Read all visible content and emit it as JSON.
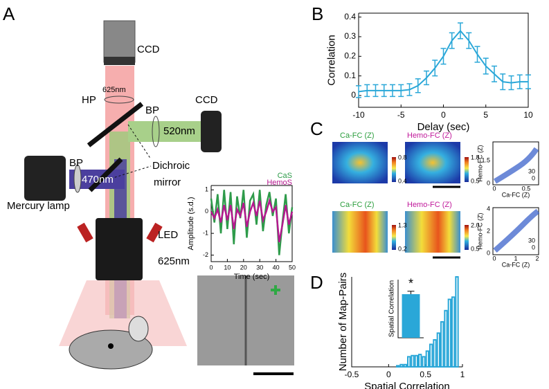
{
  "panels": {
    "a": "A",
    "b": "B",
    "c": "C",
    "d": "D"
  },
  "diagram": {
    "ccd_top": "CCD",
    "nm625_top": "625nm",
    "hp": "HP",
    "bp_right": "BP",
    "ccd_right": "CCD",
    "nm520": "520nm",
    "bp_left": "BP",
    "nm470": "470nm",
    "dichroic": "Dichroic",
    "mirror": "mirror",
    "mercury": "Mercury lamp",
    "led": "LED",
    "nm625_bottom": "625nm"
  },
  "panel_c": {
    "titles": [
      "Ca-FC (Z)",
      "Hemo-FC (Z)",
      "Ca-FC (Z)",
      "Hemo-FC (Z)"
    ],
    "colorbars": [
      [
        "0.8",
        "0.4"
      ],
      [
        "1.8",
        "0.5"
      ],
      [
        "1.3",
        "0.2"
      ],
      [
        "2.0",
        "0.5"
      ]
    ],
    "scatter": [
      {
        "ylabel": "Hemo-FC (Z)",
        "xlabel": "Ca-FC (Z)",
        "yticks": [
          "1.5",
          "0"
        ],
        "xticks": [
          "0",
          "0.5"
        ],
        "legend": [
          "30",
          "0"
        ]
      },
      {
        "ylabel": "Hemo-FC (Z)",
        "xlabel": "Ca-FC (Z)",
        "yticks": [
          "4",
          "2",
          "0"
        ],
        "xticks": [
          "0",
          "1",
          "2"
        ],
        "legend": [
          "30",
          "0"
        ]
      }
    ]
  },
  "chart_data": [
    {
      "type": "line",
      "xlabel": "Delay (sec)",
      "ylabel": "Correlation",
      "color": "#2aa7d8",
      "x": [
        -10,
        -9,
        -8,
        -7,
        -6,
        -5,
        -4,
        -3,
        -2,
        -1,
        0,
        1,
        2,
        3,
        4,
        5,
        6,
        7,
        8,
        9,
        10
      ],
      "values": [
        0.02,
        0.025,
        0.025,
        0.025,
        0.025,
        0.025,
        0.03,
        0.05,
        0.09,
        0.14,
        0.2,
        0.28,
        0.33,
        0.28,
        0.21,
        0.15,
        0.11,
        0.07,
        0.065,
        0.07,
        0.07
      ],
      "errors": [
        0.03,
        0.03,
        0.03,
        0.03,
        0.03,
        0.03,
        0.03,
        0.035,
        0.035,
        0.04,
        0.04,
        0.04,
        0.04,
        0.04,
        0.04,
        0.04,
        0.04,
        0.04,
        0.035,
        0.035,
        0.035
      ],
      "xlim": [
        -10,
        10
      ],
      "xticks": [
        -10,
        -5,
        0,
        5,
        10
      ],
      "ylim": [
        -0.06,
        0.42
      ],
      "yticks": [
        0,
        0.1,
        0.2,
        0.3,
        0.4
      ]
    },
    {
      "type": "line",
      "xlabel": "Time (sec)",
      "ylabel": "Amplitude (s.d.)",
      "x": [
        0,
        2,
        4,
        6,
        8,
        10,
        12,
        14,
        16,
        18,
        20,
        22,
        24,
        26,
        28,
        30,
        32,
        34,
        36,
        38,
        40,
        42,
        44,
        46,
        48,
        50
      ],
      "series": [
        {
          "name": "CaS",
          "color": "#2e9b4a",
          "values": [
            0.6,
            -0.5,
            0.8,
            -1.0,
            1.0,
            -0.8,
            0.9,
            -1.5,
            0.7,
            -0.3,
            1.0,
            -1.2,
            0.5,
            0.8,
            -0.6,
            1.0,
            -0.9,
            0.3,
            0.9,
            -0.2,
            0.6,
            -2.0,
            -0.5,
            0.8,
            -1.0,
            0.2
          ]
        },
        {
          "name": "HemoS",
          "color": "#b5188f",
          "values": [
            0,
            -0.3,
            0.1,
            -0.5,
            0.3,
            -0.4,
            0.3,
            -0.8,
            0.1,
            -0.2,
            0.4,
            -0.7,
            0,
            0.4,
            -0.2,
            0.5,
            -0.4,
            0,
            0.5,
            0,
            0.2,
            -1.4,
            -0.6,
            0.3,
            -0.6,
            0
          ]
        }
      ],
      "xlim": [
        0,
        50
      ],
      "xticks": [
        0,
        10,
        20,
        30,
        40,
        50
      ],
      "ylim": [
        -2.3,
        1.2
      ],
      "yticks": [
        -2,
        -1,
        0,
        1
      ]
    },
    {
      "type": "histogram",
      "xlabel": "Spatial Correlation",
      "ylabel": "Number of Map-Pairs",
      "color": "#2aa7d8",
      "bins": [
        0.1,
        0.15,
        0.2,
        0.25,
        0.3,
        0.35,
        0.4,
        0.45,
        0.5,
        0.55,
        0.6,
        0.65,
        0.7,
        0.75,
        0.8,
        0.85,
        0.9,
        0.95
      ],
      "values": [
        1,
        2,
        2,
        9,
        10,
        10,
        11,
        9,
        14,
        20,
        24,
        30,
        40,
        50,
        60,
        62,
        80
      ],
      "xlim": [
        -0.5,
        1
      ],
      "xticks": [
        -0.5,
        0,
        0.5,
        1
      ],
      "ylim": [
        0,
        80
      ]
    },
    {
      "type": "bar",
      "ylabel": "Spatial Correlation",
      "color": "#2aa7d8",
      "annotation": "*",
      "values": [
        0.75
      ],
      "errors": [
        0.05
      ],
      "ylim": [
        0,
        1
      ]
    }
  ]
}
